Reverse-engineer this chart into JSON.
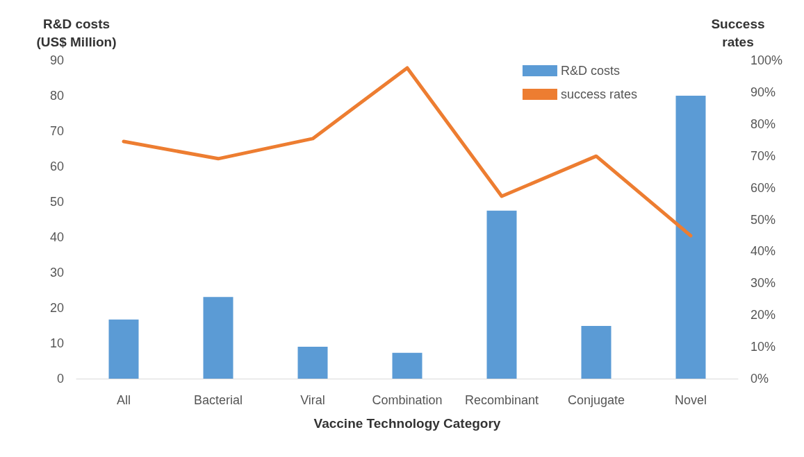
{
  "chart_data": {
    "type": "bar",
    "xlabel": "Vaccine Technology Category",
    "ylabel": "R&D costs\n(US$ Million)",
    "y2label": "Success\nrates",
    "categories": [
      "All",
      "Bacterial",
      "Viral",
      "Combination",
      "Recombinant",
      "Conjugate",
      "Novel"
    ],
    "series": [
      {
        "name": "R&D costs",
        "color": "#5b9bd5",
        "values": [
          16.7,
          23.1,
          9.0,
          7.3,
          47.5,
          14.9,
          80
        ]
      },
      {
        "name": "success rates",
        "type": "line",
        "axis": "y2",
        "color": "#ed7d31",
        "values": [
          74.5,
          69.1,
          75.4,
          97.6,
          57.3,
          69.9,
          44.9
        ]
      }
    ],
    "ylim": [
      0,
      90
    ],
    "yticks": [
      0,
      10,
      20,
      30,
      40,
      50,
      60,
      70,
      80,
      90
    ],
    "y2lim": [
      0,
      100
    ],
    "y2ticks": [
      {
        "value": 0,
        "label": "0%"
      },
      {
        "value": 10,
        "label": "10%"
      },
      {
        "value": 20,
        "label": "20%"
      },
      {
        "value": 30,
        "label": "30%"
      },
      {
        "value": 40,
        "label": "40%"
      },
      {
        "value": 50,
        "label": "50%"
      },
      {
        "value": 60,
        "label": "60%"
      },
      {
        "value": 70,
        "label": "70%"
      },
      {
        "value": 80,
        "label": "80%"
      },
      {
        "value": 90,
        "label": "90%"
      },
      {
        "value": 100,
        "label": "100%"
      }
    ],
    "grid": false,
    "legend": "top right",
    "marker": "none",
    "line_style": "solid"
  }
}
